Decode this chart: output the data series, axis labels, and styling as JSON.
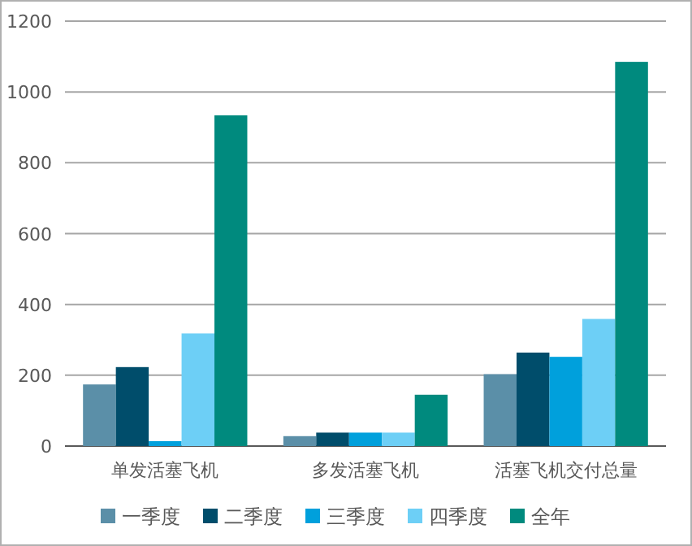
{
  "chart_data": {
    "type": "bar",
    "categories": [
      "单发活塞飞机",
      "多发活塞飞机",
      "活塞飞机交付总量"
    ],
    "series": [
      {
        "name": "一季度",
        "color": "#5b8fa8",
        "values": [
          174,
          28,
          203
        ]
      },
      {
        "name": "二季度",
        "color": "#004d6b",
        "values": [
          223,
          38,
          264
        ]
      },
      {
        "name": "三季度",
        "color": "#00a0dc",
        "values": [
          14,
          38,
          252
        ]
      },
      {
        "name": "四季度",
        "color": "#6dcff6",
        "values": [
          318,
          38,
          359
        ]
      },
      {
        "name": "全年",
        "color": "#008a7e",
        "values": [
          934,
          145,
          1085
        ]
      }
    ],
    "ylim": [
      0,
      1200
    ],
    "yticks": [
      0,
      200,
      400,
      600,
      800,
      1000,
      1200
    ],
    "grid": "y",
    "legend": "bottom"
  }
}
